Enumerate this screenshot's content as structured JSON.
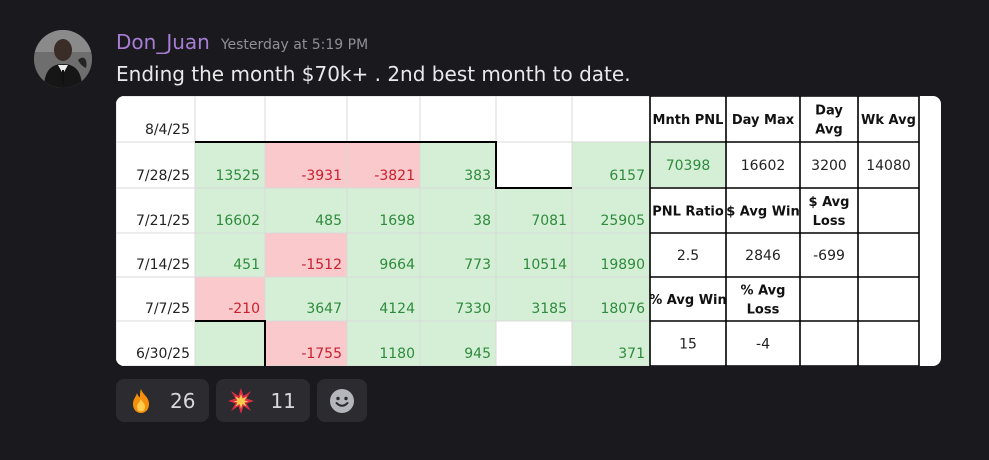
{
  "message": {
    "username": "Don_Juan",
    "timestamp": "Yesterday at 5:19 PM",
    "content": "Ending the month $70k+ . 2nd best month to date.",
    "avatar_icon": "person-in-suit-icon"
  },
  "spreadsheet": {
    "rows": [
      {
        "label": "8/4/25",
        "cells": [
          "",
          "",
          "",
          "",
          "",
          ""
        ]
      },
      {
        "label": "7/28/25",
        "cells": [
          "13525",
          "-3931",
          "-3821",
          "383",
          "",
          "6157"
        ]
      },
      {
        "label": "7/21/25",
        "cells": [
          "16602",
          "485",
          "1698",
          "38",
          "7081",
          "25905"
        ]
      },
      {
        "label": "7/14/25",
        "cells": [
          "451",
          "-1512",
          "9664",
          "773",
          "10514",
          "19890"
        ]
      },
      {
        "label": "7/7/25",
        "cells": [
          "-210",
          "3647",
          "4124",
          "7330",
          "3185",
          "18076"
        ]
      },
      {
        "label": "6/30/25",
        "cells": [
          "",
          "-1755",
          "1180",
          "945",
          "",
          "371"
        ]
      }
    ],
    "stats": [
      [
        "Mnth PNL",
        "Day Max",
        "Day Avg",
        "Wk Avg"
      ],
      [
        "70398",
        "16602",
        "3200",
        "14080"
      ],
      [
        "PNL Ratio",
        "$ Avg Win",
        "$ Avg Loss",
        ""
      ],
      [
        "2.5",
        "2846",
        "-699",
        ""
      ],
      [
        "% Avg Win",
        "% Avg Loss",
        "",
        ""
      ],
      [
        "15",
        "-4",
        "",
        ""
      ]
    ],
    "colors": {
      "positive_fill": "#d5efd7",
      "negative_fill": "#f9c9cb",
      "positive_text": "#2e8b3b",
      "negative_text": "#c8202e"
    }
  },
  "reactions": [
    {
      "emoji": "fire-icon",
      "count": "26"
    },
    {
      "emoji": "collision-icon",
      "count": "11"
    }
  ],
  "add_reaction_icon": "add-reaction-smiley-icon"
}
